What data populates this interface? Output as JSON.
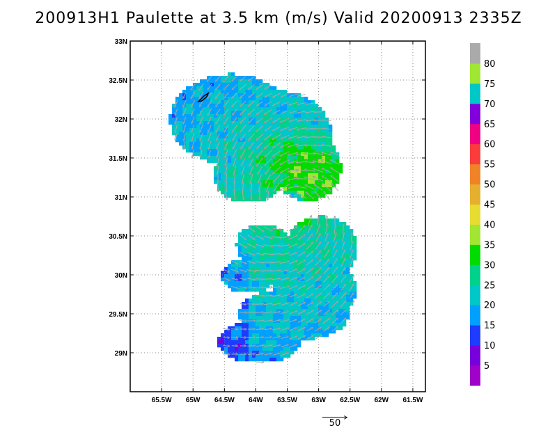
{
  "title": "200913H1 Paulette at 3.5 km (m/s) Valid 20200913 2335Z",
  "map": {
    "lon_range": [
      -66.0,
      -61.3
    ],
    "lat_range": [
      28.5,
      33.0
    ],
    "lon_ticks": [
      {
        "value": -65.5,
        "label": "65.5W"
      },
      {
        "value": -65.0,
        "label": "65W"
      },
      {
        "value": -64.5,
        "label": "64.5W"
      },
      {
        "value": -64.0,
        "label": "64W"
      },
      {
        "value": -63.5,
        "label": "63.5W"
      },
      {
        "value": -63.0,
        "label": "63W"
      },
      {
        "value": -62.5,
        "label": "62.5W"
      },
      {
        "value": -62.0,
        "label": "62W"
      },
      {
        "value": -61.5,
        "label": "61.5W"
      }
    ],
    "lat_ticks": [
      {
        "value": 33.0,
        "label": "33N"
      },
      {
        "value": 32.5,
        "label": "32.5N"
      },
      {
        "value": 32.0,
        "label": "32N"
      },
      {
        "value": 31.5,
        "label": "31.5N"
      },
      {
        "value": 31.0,
        "label": "31N"
      },
      {
        "value": 30.5,
        "label": "30.5N"
      },
      {
        "value": 30.0,
        "label": "30N"
      },
      {
        "value": 29.5,
        "label": "29.5N"
      },
      {
        "value": 29.0,
        "label": "29N"
      }
    ],
    "grid": true,
    "storm_center": {
      "lon": -63.45,
      "lat": 30.88
    },
    "island_color": "#000000"
  },
  "colorbar": {
    "levels": [
      "5",
      "10",
      "15",
      "20",
      "25",
      "30",
      "35",
      "40",
      "45",
      "50",
      "55",
      "60",
      "65",
      "70",
      "75",
      "80"
    ],
    "colors": [
      "#a000c8",
      "#7800dc",
      "#1e3cff",
      "#00a0ff",
      "#00c8c8",
      "#00d28c",
      "#00dc00",
      "#a0e632",
      "#e6dc32",
      "#e6af2d",
      "#f08228",
      "#fa3c3c",
      "#f00082",
      "#8200dc",
      "#00c8c8",
      "#a0e632",
      "#aaaaaa"
    ]
  },
  "reference_vector": {
    "label": "50"
  },
  "vector_color": "#aaaaaa"
}
